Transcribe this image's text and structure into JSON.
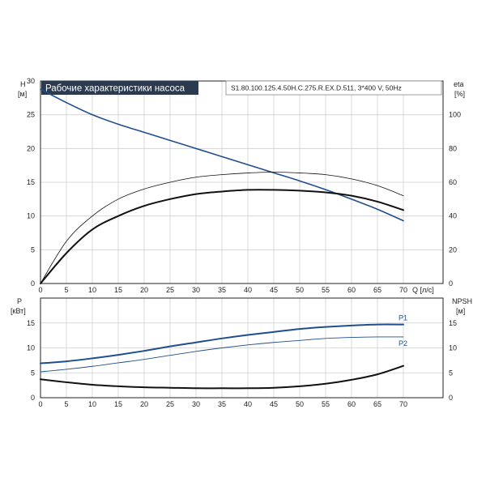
{
  "chart_data": [
    {
      "type": "line",
      "title": "Рабочие характеристики насоса",
      "subtitle": "S1.80.100.125.4.50H.C.275.R.EX.D.511, 3*400 V, 50Hz",
      "xlabel": "Q [л/с]",
      "ylabel": [
        "H",
        "[м]"
      ],
      "y2label": [
        "eta",
        "[%]"
      ],
      "xlim": [
        0,
        70
      ],
      "ylim": [
        0,
        30
      ],
      "y2lim": [
        0,
        120
      ],
      "x_ticks": [
        "0",
        "5",
        "10",
        "15",
        "20",
        "25",
        "30",
        "35",
        "40",
        "45",
        "50",
        "55",
        "60",
        "65",
        "70"
      ],
      "y_ticks": [
        "0",
        "5",
        "10",
        "15",
        "20",
        "25",
        "30"
      ],
      "y2_ticks": [
        "0",
        "20",
        "40",
        "60",
        "80",
        "100"
      ],
      "grid": true,
      "series": [
        {
          "axis": "left",
          "color": "#1f4e8c",
          "x": [
            0,
            5,
            10,
            15,
            20,
            25,
            30,
            35,
            40,
            45,
            50,
            55,
            60,
            65,
            70
          ],
          "y": [
            28.8,
            26.8,
            25.0,
            23.6,
            22.4,
            21.2,
            20.0,
            18.8,
            17.6,
            16.4,
            15.2,
            13.9,
            12.5,
            11.0,
            9.3
          ]
        },
        {
          "axis": "right",
          "color": "#111111",
          "width": 0.8,
          "x": [
            0,
            5,
            10,
            15,
            20,
            25,
            30,
            35,
            40,
            45,
            50,
            55,
            60,
            65,
            70
          ],
          "y": [
            0,
            25,
            40,
            50,
            56,
            60,
            63,
            64.5,
            65.5,
            66,
            65.5,
            64.5,
            62,
            58,
            52
          ]
        },
        {
          "axis": "right",
          "color": "#111111",
          "width": 2,
          "x": [
            0,
            5,
            10,
            15,
            20,
            25,
            30,
            35,
            40,
            45,
            50,
            55,
            60,
            65,
            70
          ],
          "y": [
            0,
            18,
            32,
            40,
            46,
            50,
            53,
            54.5,
            55.5,
            55.5,
            55,
            54,
            52,
            48.5,
            43.5
          ]
        }
      ]
    },
    {
      "type": "line",
      "xlabel": "",
      "ylabel": [
        "P",
        "[кВт]"
      ],
      "y2label": [
        "NPSH",
        "[м]"
      ],
      "xlim": [
        0,
        70
      ],
      "ylim": [
        0,
        20
      ],
      "y2lim": [
        0,
        20
      ],
      "x_ticks": [
        "0",
        "5",
        "10",
        "15",
        "20",
        "25",
        "30",
        "35",
        "40",
        "45",
        "50",
        "55",
        "60",
        "65",
        "70"
      ],
      "y_ticks": [
        "0",
        "5",
        "10",
        "15"
      ],
      "y2_ticks": [
        "0",
        "5",
        "10",
        "15"
      ],
      "grid": true,
      "series": [
        {
          "name": "P1",
          "axis": "left",
          "color": "#1f4e8c",
          "width": 2,
          "x": [
            0,
            5,
            10,
            15,
            20,
            25,
            30,
            35,
            40,
            45,
            50,
            55,
            60,
            65,
            70
          ],
          "y": [
            6.9,
            7.3,
            7.9,
            8.6,
            9.4,
            10.3,
            11.1,
            11.9,
            12.6,
            13.2,
            13.8,
            14.2,
            14.5,
            14.7,
            14.7
          ]
        },
        {
          "name": "P2",
          "axis": "left",
          "color": "#1f4e8c",
          "width": 0.9,
          "x": [
            0,
            5,
            10,
            15,
            20,
            25,
            30,
            35,
            40,
            45,
            50,
            55,
            60,
            65,
            70
          ],
          "y": [
            5.2,
            5.7,
            6.3,
            7.0,
            7.7,
            8.5,
            9.3,
            10.0,
            10.6,
            11.1,
            11.5,
            11.9,
            12.1,
            12.2,
            12.2
          ]
        },
        {
          "axis": "right",
          "color": "#111111",
          "width": 2,
          "x": [
            0,
            5,
            10,
            15,
            20,
            25,
            30,
            35,
            40,
            45,
            50,
            55,
            60,
            65,
            70
          ],
          "y": [
            3.7,
            3.1,
            2.6,
            2.3,
            2.1,
            2.0,
            1.9,
            1.9,
            1.9,
            2.0,
            2.3,
            2.8,
            3.6,
            4.7,
            6.4
          ]
        }
      ]
    }
  ]
}
